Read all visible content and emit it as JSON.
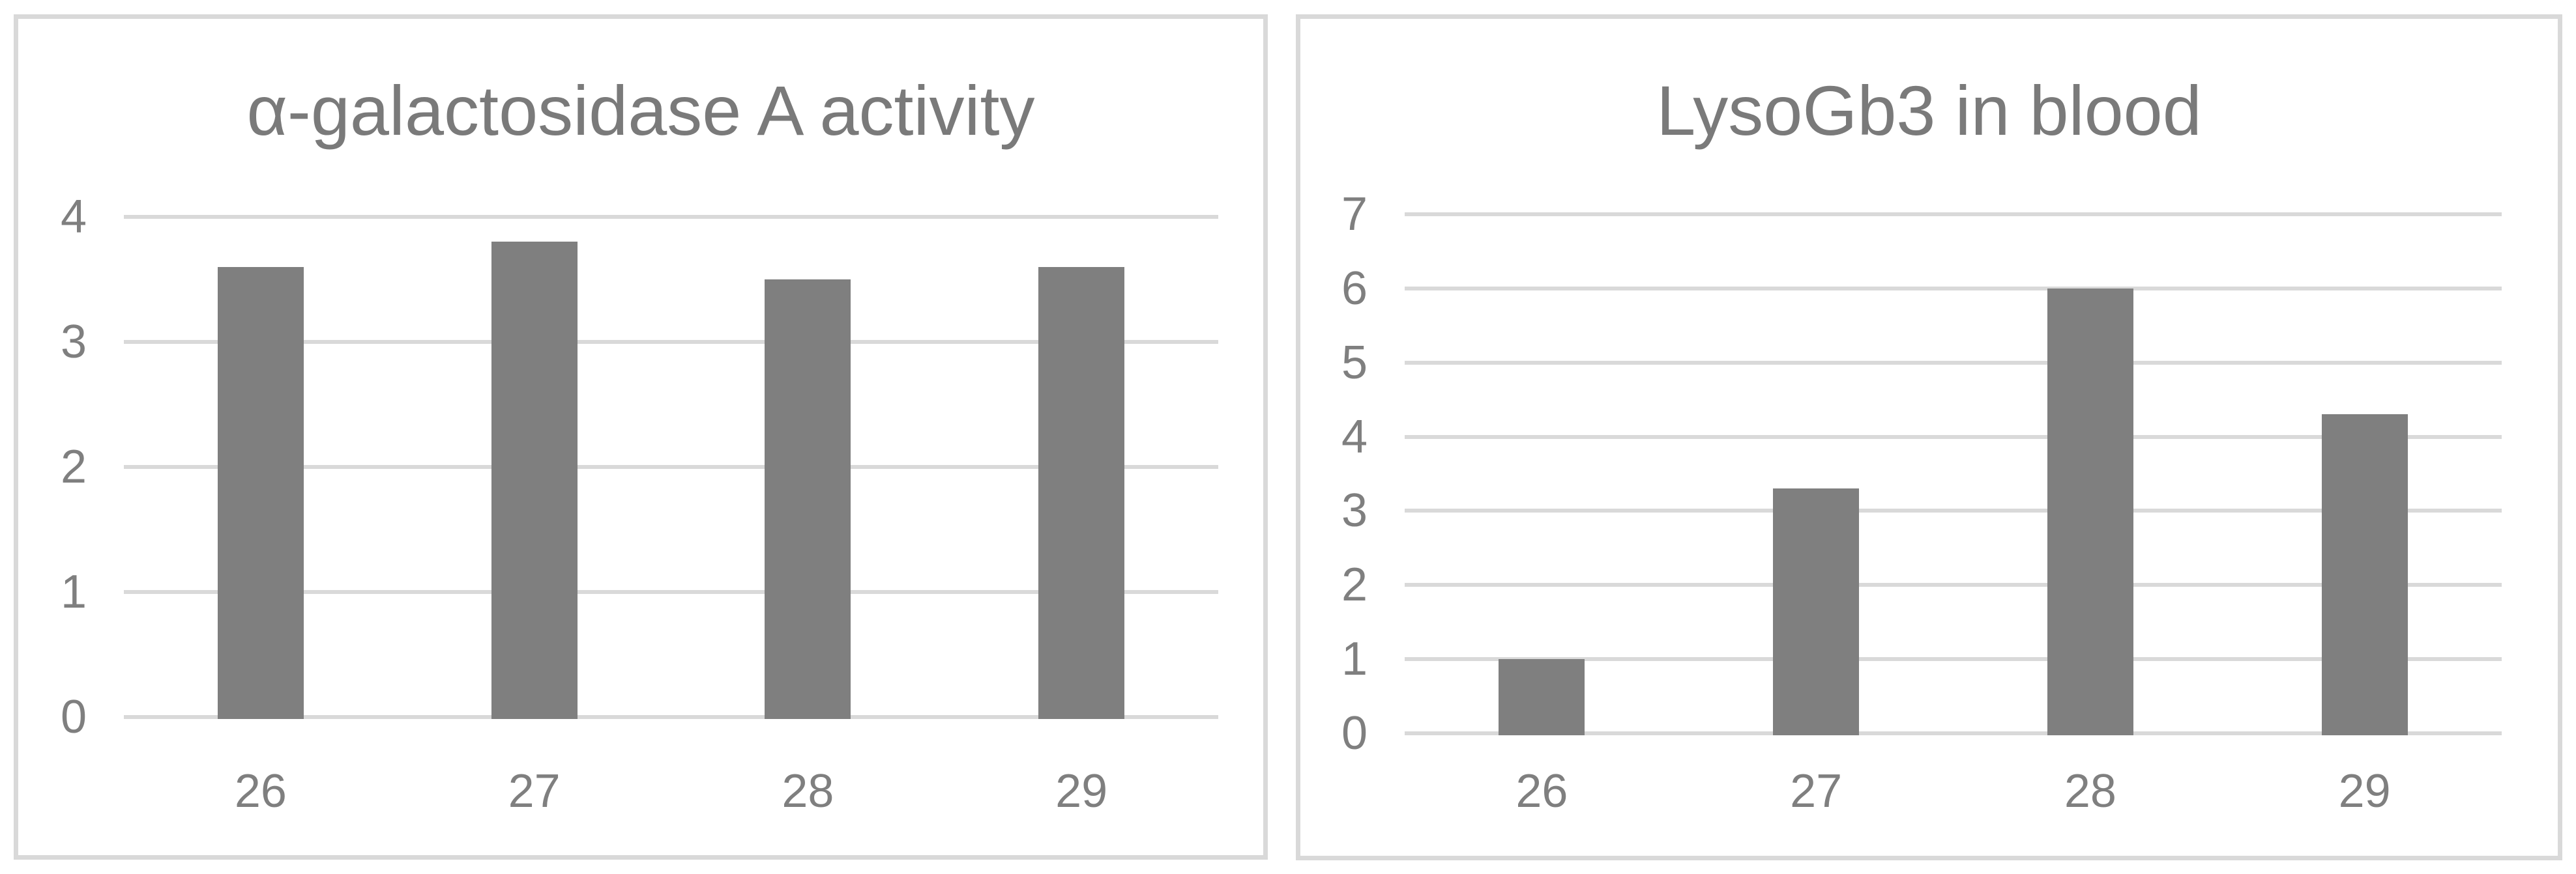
{
  "colors": {
    "bar": "#7f7f7f",
    "gridline": "#d9d9d9",
    "panel_border": "#d9d9d9",
    "tick_label": "#7f7f7f",
    "title": "#7a7a7a",
    "background": "#ffffff"
  },
  "chart_data": [
    {
      "type": "bar",
      "title": "α-galactosidase A activity",
      "categories": [
        "26",
        "27",
        "28",
        "29"
      ],
      "values": [
        3.6,
        3.8,
        3.5,
        3.6
      ],
      "xlabel": "",
      "ylabel": "",
      "ylim": [
        0,
        4
      ],
      "ytick_step": 1,
      "grid": "horizontal",
      "legend": "none"
    },
    {
      "type": "bar",
      "title": "LysoGb3 in blood",
      "categories": [
        "26",
        "27",
        "28",
        "29"
      ],
      "values": [
        1.0,
        3.3,
        6.0,
        4.3
      ],
      "xlabel": "",
      "ylabel": "",
      "ylim": [
        0,
        7
      ],
      "ytick_step": 1,
      "grid": "horizontal",
      "legend": "none"
    }
  ]
}
